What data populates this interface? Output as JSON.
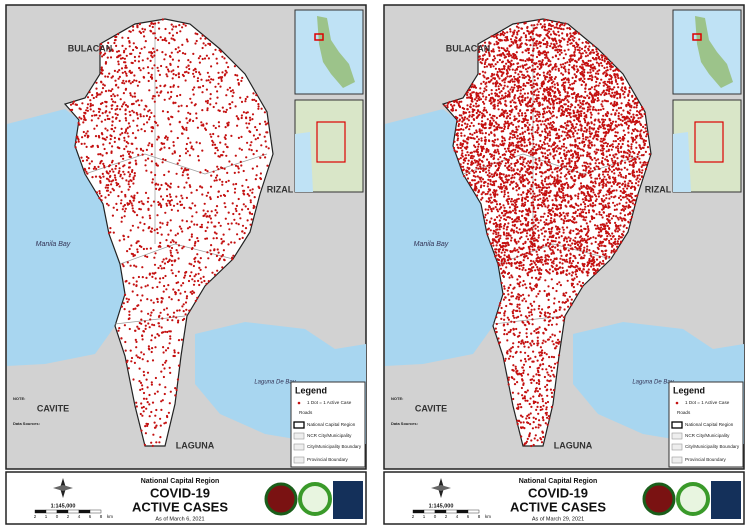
{
  "maps": [
    {
      "places": {
        "north": "BULACAN",
        "east": "RIZAL",
        "bay": "Manila Bay",
        "lake": "Laguna De Bay",
        "southwest": "CAVITE",
        "south": "LAGUNA"
      },
      "legend": {
        "title": "Legend",
        "items": [
          "1 Dot = 1 Active Case",
          "Roads",
          "National Capital Region",
          "NCR City/Municipality",
          "City/Municipality Boundary",
          "Provincial Boundary"
        ]
      },
      "notes": {
        "note": "NOTE:",
        "sources": "Data Sources:"
      },
      "footer": {
        "region": "National Capital Region",
        "title": "COVID-19",
        "subtitle": "ACTIVE CASES",
        "date": "As of March 6, 2021",
        "scale": "1:145,000",
        "scale_ticks": [
          "2",
          "1",
          "0",
          "2",
          "4",
          "6",
          "8"
        ],
        "scale_unit": "km"
      }
    },
    {
      "places": {
        "north": "BULACAN",
        "east": "RIZAL",
        "bay": "Manila Bay",
        "lake": "Laguna De Bay",
        "southwest": "CAVITE",
        "south": "LAGUNA"
      },
      "legend": {
        "title": "Legend",
        "items": [
          "1 Dot = 1 Active Case",
          "Roads",
          "National Capital Region",
          "NCR City/Municipality",
          "City/Municipality Boundary",
          "Provincial Boundary"
        ]
      },
      "notes": {
        "note": "NOTE:",
        "sources": "Data Sources:"
      },
      "footer": {
        "region": "National Capital Region",
        "title": "COVID-19",
        "subtitle": "ACTIVE CASES",
        "date": "As of March 29, 2021",
        "scale": "1:145,000",
        "scale_ticks": [
          "2",
          "1",
          "0",
          "2",
          "4",
          "6",
          "8"
        ],
        "scale_unit": "km"
      }
    }
  ]
}
